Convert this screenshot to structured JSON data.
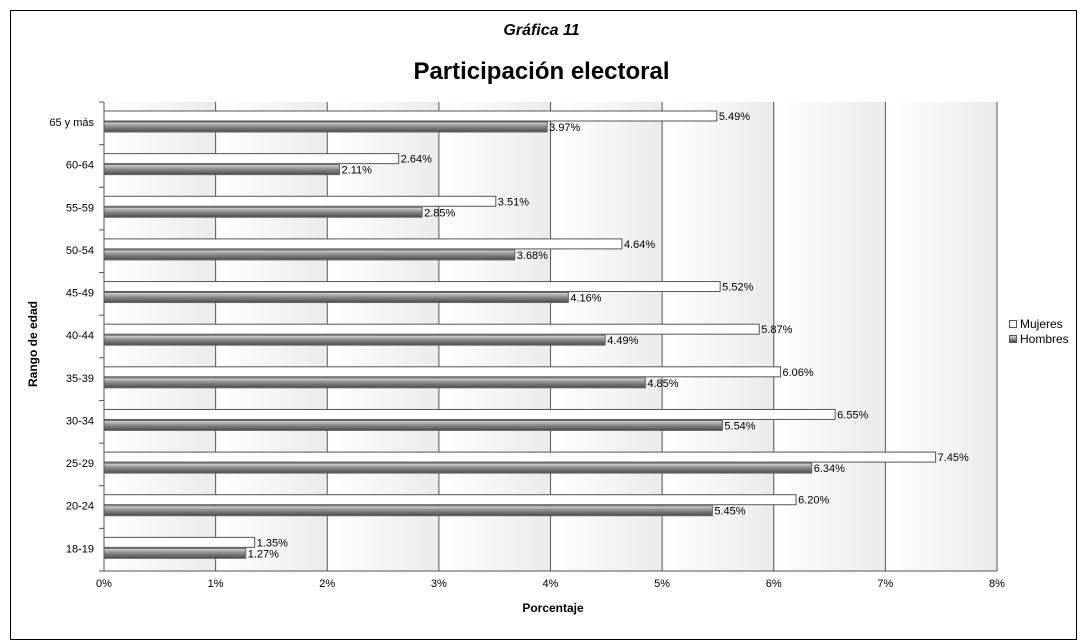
{
  "chart_data": {
    "type": "bar",
    "orientation": "horizontal",
    "subtitle": "Gráfica 11",
    "title": "Participación electoral",
    "xlabel": "Porcentaje",
    "ylabel": "Rango de edad",
    "xlim": [
      0,
      8
    ],
    "xticks": [
      "0%",
      "1%",
      "2%",
      "3%",
      "4%",
      "5%",
      "6%",
      "7%",
      "8%"
    ],
    "categories": [
      "65 y más",
      "60-64",
      "55-59",
      "50-54",
      "45-49",
      "40-44",
      "35-39",
      "30-34",
      "25-29",
      "20-24",
      "18-19"
    ],
    "series": [
      {
        "name": "Mujeres",
        "color": "#ffffff",
        "values": [
          5.49,
          2.64,
          3.51,
          4.64,
          5.52,
          5.87,
          6.06,
          6.55,
          7.45,
          6.2,
          1.35
        ],
        "labels": [
          "5.49%",
          "2.64%",
          "3.51%",
          "4.64%",
          "5.52%",
          "5.87%",
          "6.06%",
          "6.55%",
          "7.45%",
          "6.20%",
          "1.35%"
        ]
      },
      {
        "name": "Hombres",
        "color": "#8c8c8c",
        "values": [
          3.97,
          2.11,
          2.85,
          3.68,
          4.16,
          4.49,
          4.85,
          5.54,
          6.34,
          5.45,
          1.27
        ],
        "labels": [
          "3.97%",
          "2.11%",
          "2.85%",
          "3.68%",
          "4.16%",
          "4.49%",
          "4.85%",
          "5.54%",
          "6.34%",
          "5.45%",
          "1.27%"
        ]
      }
    ],
    "grid": true,
    "legend_position": "right"
  }
}
